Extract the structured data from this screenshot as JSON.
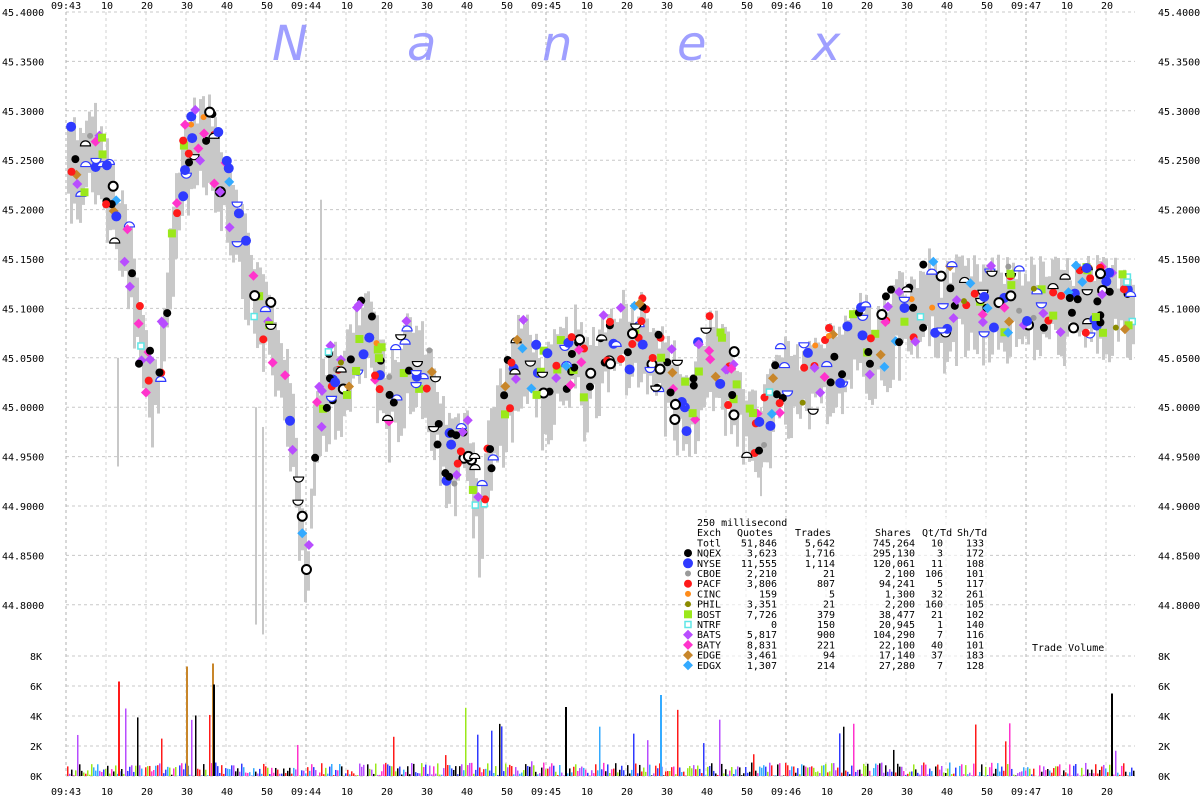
{
  "chart_data": {
    "type": "scatter",
    "watermark_letters": [
      "N",
      "a",
      "n",
      "e",
      "x"
    ],
    "x_ticks": [
      "09:43",
      "10",
      "20",
      "30",
      "40",
      "50",
      "09:44",
      "10",
      "20",
      "30",
      "40",
      "50",
      "09:45",
      "10",
      "20",
      "30",
      "40",
      "50",
      "09:46",
      "10",
      "20",
      "30",
      "40",
      "50",
      "09:47",
      "10",
      "20"
    ],
    "y_ticks": [
      "45.4000",
      "45.3500",
      "45.3000",
      "45.2500",
      "45.2000",
      "45.1500",
      "45.1000",
      "45.0500",
      "45.0000",
      "44.9500",
      "44.9000",
      "44.8500",
      "44.8000"
    ],
    "ylim": [
      44.77,
      45.4
    ],
    "volume_ticks": [
      "8K",
      "6K",
      "4K",
      "2K",
      "0K"
    ],
    "volume_ylim": [
      0,
      8000
    ],
    "volume_label": "Trade Volume",
    "grid": true,
    "legend_placement": "bottom-center",
    "interval_label": "250 millisecond",
    "table_header": [
      "Exch",
      "Quotes",
      "Trades",
      "Shares",
      "Qt/Td",
      "Sh/Td"
    ],
    "table_rows": [
      {
        "exch": "Totl",
        "quotes": "51,846",
        "trades": "5,642",
        "shares": "745,264",
        "qt_td": "10",
        "sh_td": "133",
        "color": "#ffffff",
        "marker": "none"
      },
      {
        "exch": "NQEX",
        "quotes": "3,623",
        "trades": "1,716",
        "shares": "295,130",
        "qt_td": "3",
        "sh_td": "172",
        "color": "#000000",
        "marker": "circle"
      },
      {
        "exch": "NYSE",
        "quotes": "11,555",
        "trades": "1,114",
        "shares": "120,061",
        "qt_td": "11",
        "sh_td": "108",
        "color": "#2f3aff",
        "marker": "bigcircle"
      },
      {
        "exch": "CBOE",
        "quotes": "2,210",
        "trades": "21",
        "shares": "2,100",
        "qt_td": "106",
        "sh_td": "101",
        "color": "#9a9a9a",
        "marker": "smallcircle"
      },
      {
        "exch": "PACF",
        "quotes": "3,806",
        "trades": "807",
        "shares": "94,241",
        "qt_td": "5",
        "sh_td": "117",
        "color": "#ff1a1a",
        "marker": "circle"
      },
      {
        "exch": "CINC",
        "quotes": "159",
        "trades": "5",
        "shares": "1,300",
        "qt_td": "32",
        "sh_td": "261",
        "color": "#ff8c1a",
        "marker": "smallcircle"
      },
      {
        "exch": "PHIL",
        "quotes": "3,351",
        "trades": "21",
        "shares": "2,200",
        "qt_td": "160",
        "sh_td": "105",
        "color": "#8b8b00",
        "marker": "smallcircle"
      },
      {
        "exch": "BOST",
        "quotes": "7,726",
        "trades": "379",
        "shares": "38,477",
        "qt_td": "21",
        "sh_td": "102",
        "color": "#9be81a",
        "marker": "square"
      },
      {
        "exch": "NTRF",
        "quotes": "0",
        "trades": "150",
        "shares": "20,945",
        "qt_td": "1",
        "sh_td": "140",
        "color": "#5ee6e6",
        "marker": "smallsquare"
      },
      {
        "exch": "BATS",
        "quotes": "5,817",
        "trades": "900",
        "shares": "104,290",
        "qt_td": "7",
        "sh_td": "116",
        "color": "#b84dff",
        "marker": "diamond"
      },
      {
        "exch": "BATY",
        "quotes": "8,831",
        "trades": "221",
        "shares": "22,100",
        "qt_td": "40",
        "sh_td": "101",
        "color": "#ff33cc",
        "marker": "diamond"
      },
      {
        "exch": "EDGE",
        "quotes": "3,461",
        "trades": "94",
        "shares": "17,140",
        "qt_td": "37",
        "sh_td": "183",
        "color": "#c8862a",
        "marker": "diamond"
      },
      {
        "exch": "EDGX",
        "quotes": "1,307",
        "trades": "214",
        "shares": "27,280",
        "qt_td": "7",
        "sh_td": "128",
        "color": "#33aaff",
        "marker": "diamond"
      }
    ],
    "price_path": [
      [
        0.0,
        45.25
      ],
      [
        0.03,
        45.26
      ],
      [
        0.07,
        45.24
      ],
      [
        0.1,
        45.28
      ],
      [
        0.14,
        45.25
      ],
      [
        0.18,
        45.22
      ],
      [
        0.22,
        45.18
      ],
      [
        0.26,
        45.16
      ],
      [
        0.3,
        45.08
      ],
      [
        0.34,
        45.03
      ],
      [
        0.38,
        45.02
      ],
      [
        0.42,
        45.12
      ],
      [
        0.46,
        45.22
      ],
      [
        0.5,
        45.26
      ],
      [
        0.55,
        45.28
      ],
      [
        0.6,
        45.27
      ],
      [
        0.65,
        45.24
      ],
      [
        0.7,
        45.2
      ],
      [
        0.74,
        45.16
      ],
      [
        0.78,
        45.12
      ],
      [
        0.82,
        45.1
      ],
      [
        0.86,
        45.07
      ],
      [
        0.9,
        45.04
      ],
      [
        0.94,
        44.98
      ],
      [
        0.97,
        44.9
      ],
      [
        1.0,
        44.82
      ],
      [
        1.03,
        44.97
      ],
      [
        1.06,
        45.0
      ],
      [
        1.1,
        45.04
      ],
      [
        1.14,
        45.03
      ],
      [
        1.18,
        45.05
      ],
      [
        1.22,
        45.07
      ],
      [
        1.26,
        45.09
      ],
      [
        1.3,
        45.04
      ],
      [
        1.34,
        45.01
      ],
      [
        1.38,
        45.03
      ],
      [
        1.42,
        45.06
      ],
      [
        1.46,
        45.05
      ],
      [
        1.5,
        45.04
      ],
      [
        1.54,
        45.0
      ],
      [
        1.58,
        44.96
      ],
      [
        1.62,
        44.95
      ],
      [
        1.66,
        44.98
      ],
      [
        1.7,
        44.92
      ],
      [
        1.72,
        44.88
      ],
      [
        1.76,
        44.96
      ],
      [
        1.8,
        45.0
      ],
      [
        1.84,
        45.02
      ],
      [
        1.88,
        45.05
      ],
      [
        1.92,
        45.06
      ],
      [
        1.96,
        45.03
      ],
      [
        2.0,
        45.02
      ],
      [
        2.04,
        45.04
      ],
      [
        2.08,
        45.05
      ],
      [
        2.12,
        45.06
      ],
      [
        2.16,
        45.03
      ],
      [
        2.2,
        45.05
      ],
      [
        2.24,
        45.06
      ],
      [
        2.28,
        45.07
      ],
      [
        2.32,
        45.08
      ],
      [
        2.36,
        45.07
      ],
      [
        2.4,
        45.08
      ],
      [
        2.44,
        45.06
      ],
      [
        2.48,
        45.04
      ],
      [
        2.52,
        45.03
      ],
      [
        2.56,
        45.01
      ],
      [
        2.6,
        45.0
      ],
      [
        2.64,
        45.04
      ],
      [
        2.68,
        45.06
      ],
      [
        2.72,
        45.05
      ],
      [
        2.76,
        45.03
      ],
      [
        2.8,
        45.02
      ],
      [
        2.84,
        44.98
      ],
      [
        2.88,
        44.97
      ],
      [
        2.92,
        45.0
      ],
      [
        2.96,
        45.02
      ],
      [
        3.0,
        45.03
      ],
      [
        3.04,
        45.02
      ],
      [
        3.08,
        45.04
      ],
      [
        3.12,
        45.03
      ],
      [
        3.16,
        45.05
      ],
      [
        3.2,
        45.06
      ],
      [
        3.24,
        45.05
      ],
      [
        3.28,
        45.07
      ],
      [
        3.32,
        45.08
      ],
      [
        3.36,
        45.06
      ],
      [
        3.4,
        45.07
      ],
      [
        3.44,
        45.09
      ],
      [
        3.48,
        45.1
      ],
      [
        3.52,
        45.09
      ],
      [
        3.56,
        45.11
      ],
      [
        3.6,
        45.12
      ],
      [
        3.64,
        45.1
      ],
      [
        3.68,
        45.11
      ]
    ]
  }
}
